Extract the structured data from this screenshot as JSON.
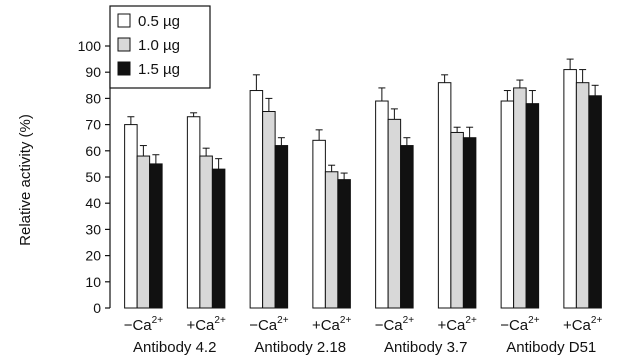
{
  "chart_data": {
    "type": "bar",
    "ylabel": "Relative activity (%)",
    "ylim": [
      0,
      100
    ],
    "yticks": [
      0,
      10,
      20,
      30,
      40,
      50,
      60,
      70,
      80,
      90,
      100
    ],
    "grid": false,
    "legend_position": "top-left",
    "conditions": [
      "−Ca",
      "+Ca"
    ],
    "superscript": "2+",
    "group_labels": [
      "Antibody 4.2",
      "Antibody 2.18",
      "Antibody 3.7",
      "Antibody D51"
    ],
    "series": [
      {
        "name": "0.5 µg",
        "color": "#ffffff",
        "values": [
          70,
          73,
          83,
          64,
          79,
          86,
          79,
          91
        ],
        "errors": [
          3,
          1.5,
          6,
          4,
          5,
          3,
          4,
          4
        ]
      },
      {
        "name": "1.0 µg",
        "color": "#d8d8d8",
        "values": [
          58,
          58,
          75,
          52,
          72,
          67,
          84,
          86
        ],
        "errors": [
          4,
          3,
          5,
          2.5,
          4,
          2,
          3,
          5
        ]
      },
      {
        "name": "1.5 µg",
        "color": "#111111",
        "values": [
          55,
          53,
          62,
          49,
          62,
          65,
          78,
          81
        ],
        "errors": [
          3.5,
          4,
          3,
          2.5,
          3,
          4,
          5,
          4
        ]
      }
    ]
  }
}
